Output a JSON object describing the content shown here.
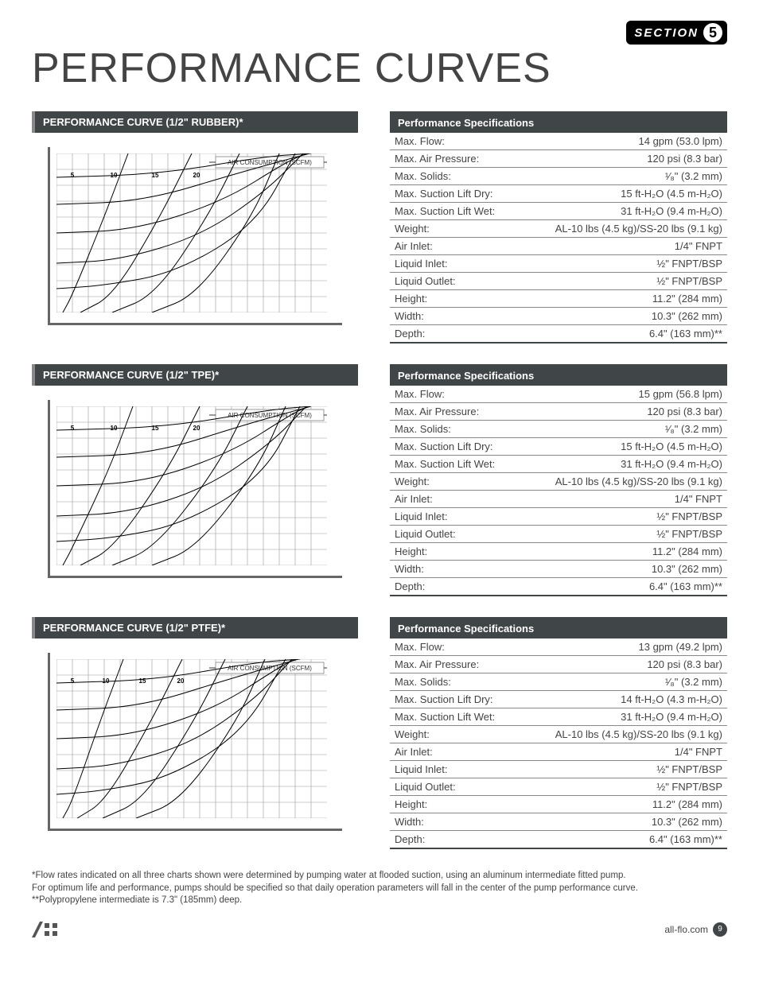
{
  "section": {
    "label": "SECTION",
    "num": "5"
  },
  "page_title": "PERFORMANCE CURVES",
  "chart_common": {
    "air_label": "AIR CONSUMPTION (SCFM)",
    "grid_color": "#999",
    "curve_color": "#000",
    "stroke_width": 1,
    "grid_stroke": 0.6
  },
  "air_ticks": [
    "5",
    "10",
    "15",
    "20"
  ],
  "sections": [
    {
      "curve_title": "PERFORMANCE CURVE (1/2\" RUBBER)*",
      "chart": {
        "type": "line",
        "xlim": [
          0,
          320
        ],
        "ylim": [
          0,
          200
        ],
        "gxstep": 20,
        "gystep": 20,
        "air_ticks_x": [
          20,
          72,
          124,
          176
        ],
        "air_curves": [
          [
            [
              8,
              0
            ],
            [
              20,
              22
            ],
            [
              60,
              120
            ],
            [
              90,
              200
            ]
          ],
          [
            [
              30,
              0
            ],
            [
              72,
              22
            ],
            [
              130,
              120
            ],
            [
              170,
              200
            ]
          ],
          [
            [
              70,
              0
            ],
            [
              124,
              22
            ],
            [
              190,
              120
            ],
            [
              230,
              200
            ]
          ],
          [
            [
              120,
              0
            ],
            [
              176,
              22
            ],
            [
              246,
              120
            ],
            [
              280,
              200
            ]
          ]
        ],
        "perf_curves": [
          [
            [
              0,
              30
            ],
            [
              60,
              34
            ],
            [
              150,
              50
            ],
            [
              250,
              110
            ],
            [
              300,
              200
            ]
          ],
          [
            [
              0,
              62
            ],
            [
              80,
              66
            ],
            [
              180,
              96
            ],
            [
              260,
              150
            ],
            [
              310,
              200
            ]
          ],
          [
            [
              0,
              100
            ],
            [
              100,
              104
            ],
            [
              210,
              140
            ],
            [
              290,
              190
            ],
            [
              315,
              200
            ]
          ],
          [
            [
              0,
              136
            ],
            [
              110,
              140
            ],
            [
              230,
              176
            ],
            [
              318,
              200
            ]
          ],
          [
            [
              0,
              170
            ],
            [
              130,
              174
            ],
            [
              260,
              196
            ],
            [
              320,
              200
            ]
          ]
        ]
      },
      "spec_title": "Performance Specifications",
      "specs": [
        {
          "label": "Max. Flow:",
          "val": "14 gpm (53.0 lpm)"
        },
        {
          "label": "Max. Air Pressure:",
          "val": "120 psi (8.3 bar)"
        },
        {
          "label": "Max. Solids:",
          "val": "¹∕₈\" (3.2 mm)"
        },
        {
          "label": "Max. Suction Lift Dry:",
          "val": "15 ft-H₂O (4.5 m-H₂O)"
        },
        {
          "label": "Max. Suction Lift Wet:",
          "val": "31 ft-H₂O (9.4 m-H₂O)"
        },
        {
          "label": "Weight:",
          "val": "AL-10 lbs (4.5 kg)/SS-20 lbs (9.1 kg)"
        },
        {
          "label": "Air Inlet:",
          "val": "1/4\" FNPT"
        },
        {
          "label": "Liquid Inlet:",
          "val": "½\" FNPT/BSP"
        },
        {
          "label": "Liquid Outlet:",
          "val": "½\" FNPT/BSP"
        },
        {
          "label": "Height:",
          "val": "11.2\" (284 mm)"
        },
        {
          "label": "Width:",
          "val": "10.3\" (262 mm)"
        },
        {
          "label": "Depth:",
          "val": "6.4\" (163 mm)**"
        }
      ]
    },
    {
      "curve_title": "PERFORMANCE CURVE (1/2\" TPE)*",
      "chart": {
        "type": "line",
        "xlim": [
          0,
          320
        ],
        "ylim": [
          0,
          200
        ],
        "gxstep": 20,
        "gystep": 20,
        "air_ticks_x": [
          20,
          72,
          124,
          176
        ],
        "air_curves": [
          [
            [
              8,
              0
            ],
            [
              20,
              22
            ],
            [
              66,
              120
            ],
            [
              96,
              200
            ]
          ],
          [
            [
              30,
              0
            ],
            [
              72,
              22
            ],
            [
              140,
              120
            ],
            [
              180,
              200
            ]
          ],
          [
            [
              70,
              0
            ],
            [
              124,
              22
            ],
            [
              200,
              120
            ],
            [
              240,
              200
            ]
          ],
          [
            [
              120,
              0
            ],
            [
              176,
              22
            ],
            [
              252,
              120
            ],
            [
              288,
              200
            ]
          ]
        ],
        "perf_curves": [
          [
            [
              0,
              30
            ],
            [
              70,
              34
            ],
            [
              160,
              52
            ],
            [
              260,
              112
            ],
            [
              306,
              200
            ]
          ],
          [
            [
              0,
              62
            ],
            [
              90,
              66
            ],
            [
              190,
              98
            ],
            [
              270,
              154
            ],
            [
              314,
              200
            ]
          ],
          [
            [
              0,
              100
            ],
            [
              110,
              104
            ],
            [
              220,
              142
            ],
            [
              298,
              192
            ],
            [
              318,
              200
            ]
          ],
          [
            [
              0,
              136
            ],
            [
              120,
              140
            ],
            [
              240,
              178
            ],
            [
              320,
              200
            ]
          ],
          [
            [
              0,
              170
            ],
            [
              140,
              174
            ],
            [
              270,
              196
            ],
            [
              320,
              200
            ]
          ]
        ]
      },
      "spec_title": "Performance Specifications",
      "specs": [
        {
          "label": "Max. Flow:",
          "val": "15 gpm (56.8 lpm)"
        },
        {
          "label": "Max. Air Pressure:",
          "val": "120 psi (8.3 bar)"
        },
        {
          "label": "Max. Solids:",
          "val": "¹∕₈\" (3.2 mm)"
        },
        {
          "label": "Max. Suction Lift Dry:",
          "val": "15 ft-H₂O (4.5 m-H₂O)"
        },
        {
          "label": "Max. Suction Lift Wet:",
          "val": "31 ft-H₂O (9.4 m-H₂O)"
        },
        {
          "label": "Weight:",
          "val": "AL-10 lbs (4.5 kg)/SS-20 lbs (9.1 kg)"
        },
        {
          "label": "Air Inlet:",
          "val": "1/4\" FNPT"
        },
        {
          "label": "Liquid Inlet:",
          "val": "½\" FNPT/BSP"
        },
        {
          "label": "Liquid Outlet:",
          "val": "½\" FNPT/BSP"
        },
        {
          "label": "Height:",
          "val": "11.2\" (284 mm)"
        },
        {
          "label": "Width:",
          "val": "10.3\" (262 mm)"
        },
        {
          "label": "Depth:",
          "val": "6.4\" (163 mm)**"
        }
      ]
    },
    {
      "curve_title": "PERFORMANCE CURVE (1/2\" PTFE)*",
      "chart": {
        "type": "line",
        "xlim": [
          0,
          320
        ],
        "ylim": [
          0,
          200
        ],
        "gxstep": 20,
        "gystep": 20,
        "air_ticks_x": [
          20,
          62,
          108,
          156
        ],
        "air_curves": [
          [
            [
              8,
              0
            ],
            [
              20,
              22
            ],
            [
              54,
              120
            ],
            [
              84,
              200
            ]
          ],
          [
            [
              26,
              0
            ],
            [
              62,
              22
            ],
            [
              118,
              120
            ],
            [
              158,
              200
            ]
          ],
          [
            [
              58,
              0
            ],
            [
              108,
              22
            ],
            [
              172,
              120
            ],
            [
              212,
              200
            ]
          ],
          [
            [
              100,
              0
            ],
            [
              156,
              22
            ],
            [
              226,
              120
            ],
            [
              262,
              200
            ]
          ]
        ],
        "perf_curves": [
          [
            [
              0,
              30
            ],
            [
              55,
              34
            ],
            [
              140,
              50
            ],
            [
              235,
              108
            ],
            [
              288,
              200
            ]
          ],
          [
            [
              0,
              62
            ],
            [
              75,
              66
            ],
            [
              170,
              94
            ],
            [
              250,
              150
            ],
            [
              296,
              200
            ]
          ],
          [
            [
              0,
              100
            ],
            [
              95,
              104
            ],
            [
              200,
              138
            ],
            [
              280,
              190
            ],
            [
              300,
              200
            ]
          ],
          [
            [
              0,
              136
            ],
            [
              105,
              140
            ],
            [
              220,
              176
            ],
            [
              304,
              200
            ]
          ],
          [
            [
              0,
              170
            ],
            [
              125,
              174
            ],
            [
              250,
              196
            ],
            [
              306,
              200
            ]
          ]
        ]
      },
      "spec_title": "Performance Specifications",
      "specs": [
        {
          "label": "Max. Flow:",
          "val": "13 gpm (49.2 lpm)"
        },
        {
          "label": "Max. Air Pressure:",
          "val": "120 psi (8.3 bar)"
        },
        {
          "label": "Max. Solids:",
          "val": "¹∕₈\" (3.2 mm)"
        },
        {
          "label": "Max. Suction Lift Dry:",
          "val": "14 ft-H₂O (4.3 m-H₂O)"
        },
        {
          "label": "Max. Suction Lift Wet:",
          "val": "31 ft-H₂O (9.4 m-H₂O)"
        },
        {
          "label": "Weight:",
          "val": "AL-10 lbs (4.5 kg)/SS-20 lbs (9.1 kg)"
        },
        {
          "label": "Air Inlet:",
          "val": "1/4\" FNPT"
        },
        {
          "label": "Liquid Inlet:",
          "val": "½\" FNPT/BSP"
        },
        {
          "label": "Liquid Outlet:",
          "val": "½\" FNPT/BSP"
        },
        {
          "label": "Height:",
          "val": "11.2\" (284 mm)"
        },
        {
          "label": "Width:",
          "val": "10.3\" (262 mm)"
        },
        {
          "label": "Depth:",
          "val": "6.4\" (163 mm)**"
        }
      ]
    }
  ],
  "footnotes": [
    "*Flow rates indicated on all three charts shown were determined by pumping water at flooded suction, using an aluminum intermediate fitted pump.",
    "For optimum life and performance, pumps should be specified so that daily operation parameters will fall in the center of the pump performance curve.",
    "**Polypropylene intermediate is 7.3\" (185mm) deep."
  ],
  "footer": {
    "site": "all-flo.com",
    "page": "9"
  }
}
